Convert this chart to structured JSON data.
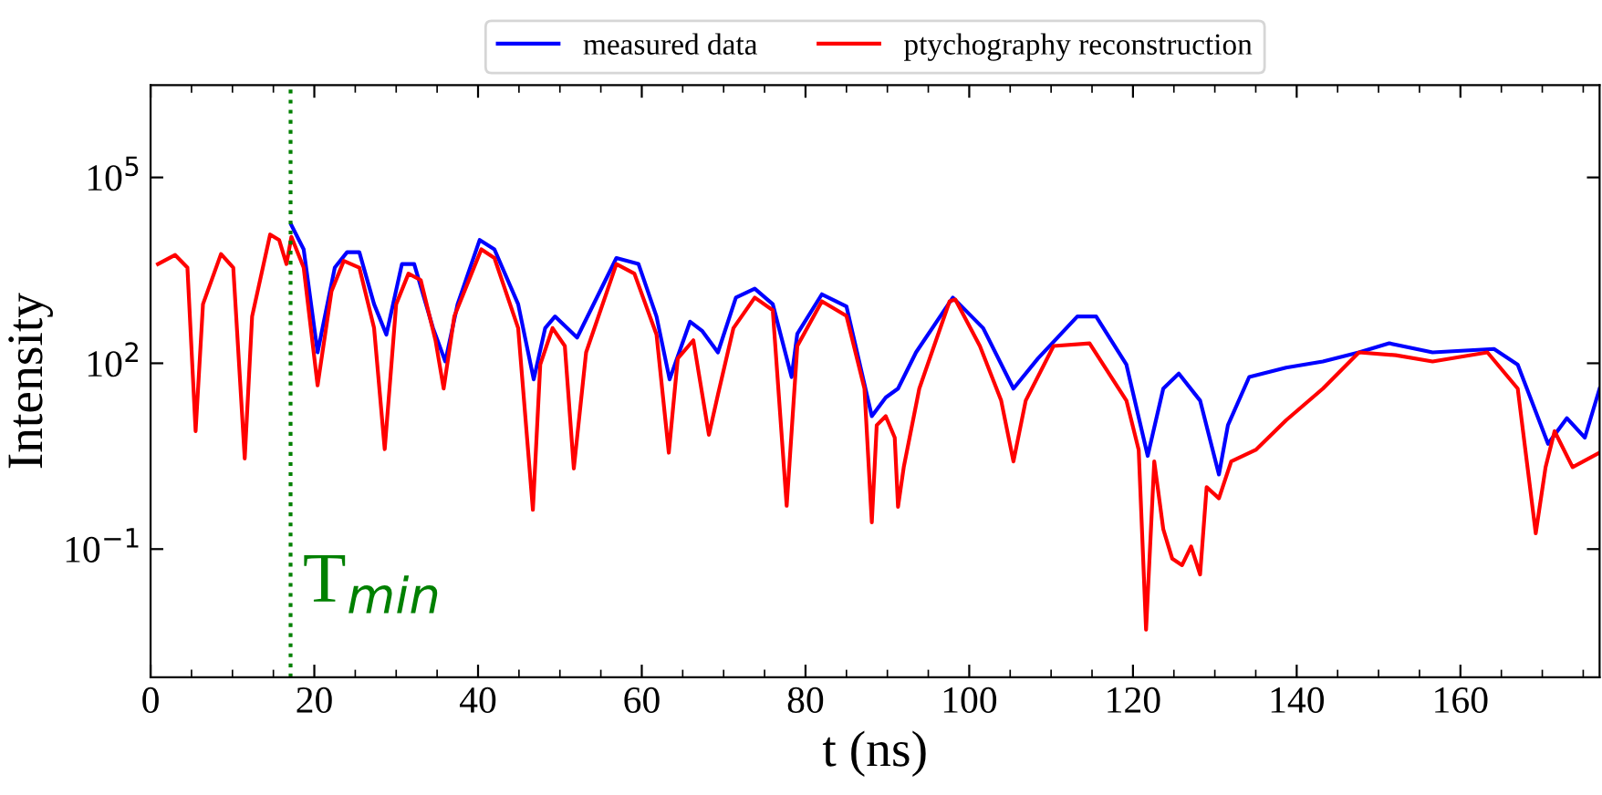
{
  "chart_data": {
    "type": "line",
    "xlabel": "t (ns)",
    "ylabel": "Intensity",
    "log": "y",
    "xlim": [
      0,
      177
    ],
    "ylim": [
      0.00085,
      3100000
    ],
    "xticks": [
      0,
      20,
      40,
      60,
      80,
      100,
      120,
      140,
      160
    ],
    "yticks": [
      {
        "value": 0.1,
        "label": "10$^{−1}$"
      },
      {
        "value": 100,
        "label": "10$^{2}$"
      },
      {
        "value": 100000,
        "label": "10$^{5}$"
      }
    ],
    "legend": "top",
    "grid": false,
    "line_style": "solid",
    "marker": "none",
    "ref_lines": [
      {
        "axis": "x",
        "value": 17.1,
        "label": "T$_{min}$",
        "color": "#008000",
        "line_style": "dotted"
      }
    ],
    "series": [
      {
        "name": "measured data",
        "color": "#0000ff",
        "x": [
          17.2,
          18.7,
          20.4,
          22.5,
          24.0,
          25.5,
          27.3,
          28.8,
          30.7,
          32.2,
          34.5,
          36.0,
          37.5,
          40.2,
          42.0,
          44.9,
          46.8,
          48.2,
          49.4,
          52.1,
          56.9,
          59.6,
          61.8,
          63.4,
          65.9,
          67.4,
          69.3,
          71.5,
          73.8,
          76.0,
          78.3,
          79.0,
          82.0,
          85.0,
          88.1,
          89.8,
          91.3,
          93.5,
          98.0,
          101.7,
          105.4,
          108.4,
          113.2,
          115.5,
          119.2,
          121.8,
          123.7,
          125.6,
          128.2,
          130.5,
          131.6,
          134.2,
          138.7,
          143.2,
          147.6,
          151.3,
          156.6,
          164.1,
          167.0,
          170.7,
          173.0,
          175.2,
          177.0
        ],
        "values": [
          17000,
          6900,
          150,
          3500,
          6200,
          6200,
          900,
          290,
          4000,
          4000,
          370,
          107,
          900,
          9800,
          6900,
          900,
          55,
          370,
          570,
          260,
          5000,
          4000,
          570,
          55,
          470,
          330,
          150,
          1150,
          1600,
          900,
          60,
          300,
          1300,
          830,
          14,
          28,
          39,
          150,
          1150,
          370,
          39,
          120,
          570,
          570,
          95,
          3.2,
          39,
          68,
          25,
          1.6,
          10,
          60,
          85,
          107,
          150,
          210,
          150,
          170,
          95,
          5,
          13,
          6.3,
          39
        ]
      },
      {
        "name": "ptychography reconstruction",
        "color": "#ff0000",
        "x": [
          0.9,
          3.0,
          4.5,
          5.5,
          6.4,
          8.6,
          10.1,
          11.5,
          12.4,
          14.6,
          15.7,
          16.6,
          17.2,
          18.7,
          20.4,
          22.1,
          23.6,
          25.5,
          27.3,
          28.6,
          30.0,
          31.5,
          33.0,
          34.8,
          35.8,
          37.1,
          40.4,
          42.0,
          44.9,
          46.7,
          47.6,
          49.1,
          50.6,
          51.7,
          53.2,
          56.9,
          59.1,
          61.8,
          63.3,
          64.4,
          66.3,
          68.2,
          69.3,
          71.2,
          73.8,
          76.0,
          77.7,
          79.0,
          82.0,
          85.0,
          87.2,
          88.1,
          88.7,
          89.8,
          90.9,
          91.3,
          92.0,
          93.9,
          97.6,
          98.3,
          101.3,
          103.9,
          105.4,
          106.9,
          110.3,
          114.7,
          119.2,
          120.7,
          121.6,
          122.6,
          123.7,
          124.8,
          126.0,
          127.1,
          128.2,
          129.0,
          130.5,
          132.0,
          135.0,
          138.7,
          143.2,
          147.6,
          152.1,
          156.6,
          163.3,
          167.0,
          169.2,
          170.4,
          171.5,
          173.7,
          177.0
        ],
        "values": [
          4000,
          5600,
          3500,
          8,
          900,
          5800,
          3500,
          2.9,
          570,
          12000,
          9800,
          4000,
          11000,
          3500,
          44,
          1450,
          4500,
          3500,
          370,
          4.1,
          900,
          2800,
          2200,
          235,
          39,
          570,
          6900,
          5000,
          370,
          0.43,
          95,
          370,
          190,
          2.0,
          150,
          4000,
          2800,
          290,
          3.6,
          120,
          235,
          7,
          31,
          370,
          1150,
          720,
          0.5,
          190,
          1000,
          580,
          39,
          0.27,
          10,
          14,
          6.3,
          0.48,
          2.1,
          39,
          1000,
          1070,
          190,
          25,
          2.6,
          25,
          190,
          210,
          25,
          4,
          0.005,
          2.6,
          0.21,
          0.07,
          0.055,
          0.11,
          0.039,
          1.0,
          0.66,
          2.6,
          4,
          12,
          39,
          150,
          135,
          107,
          150,
          39,
          0.18,
          2.1,
          8,
          2.1,
          3.6
        ]
      }
    ]
  }
}
